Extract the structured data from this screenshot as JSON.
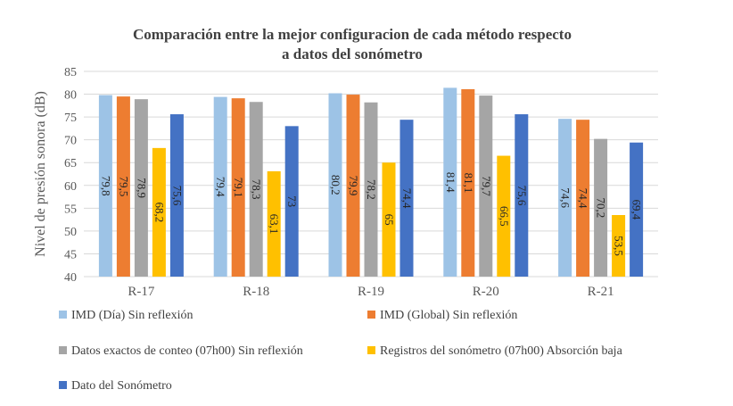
{
  "chart_data": {
    "type": "bar",
    "title_lines": [
      "Comparación entre la mejor configuracion de cada método respecto",
      "a datos del sonómetro"
    ],
    "xlabel": "",
    "ylabel": "Nivel de presión sonora (dB)",
    "ylim": [
      40,
      85
    ],
    "yticks": [
      40,
      45,
      50,
      55,
      60,
      65,
      70,
      75,
      80,
      85
    ],
    "grid": true,
    "legend_position": "bottom",
    "categories": [
      "R-17",
      "R-18",
      "R-19",
      "R-20",
      "R-21"
    ],
    "series": [
      {
        "name": "IMD (Día) Sin reflexión",
        "color": "#9DC3E6",
        "values": [
          79.8,
          79.4,
          80.2,
          81.4,
          74.6
        ],
        "labels": [
          "79,8",
          "79,4",
          "80,2",
          "81,4",
          "74,6"
        ]
      },
      {
        "name": "IMD (Global) Sin reflexión",
        "color": "#ED7D31",
        "values": [
          79.5,
          79.1,
          79.9,
          81.1,
          74.4
        ],
        "labels": [
          "79,5",
          "79,1",
          "79,9",
          "81,1",
          "74,4"
        ]
      },
      {
        "name": "Datos exactos de conteo (07h00) Sin reflexión",
        "color": "#A5A5A5",
        "values": [
          78.9,
          78.3,
          78.2,
          79.7,
          70.2
        ],
        "labels": [
          "78,9",
          "78,3",
          "78,2",
          "79,7",
          "70,2"
        ]
      },
      {
        "name": "Registros del sonómetro (07h00) Absorción baja",
        "color": "#FFC000",
        "values": [
          68.2,
          63.1,
          65,
          66.5,
          53.5
        ],
        "labels": [
          "68,2",
          "63,1",
          "65",
          "66,5",
          "53,5"
        ]
      },
      {
        "name": "Dato del Sonómetro",
        "color": "#4472C4",
        "values": [
          75.6,
          73,
          74.4,
          75.6,
          69.4
        ],
        "labels": [
          "75,6",
          "73",
          "74,4",
          "75,6",
          "69,4"
        ]
      }
    ]
  }
}
